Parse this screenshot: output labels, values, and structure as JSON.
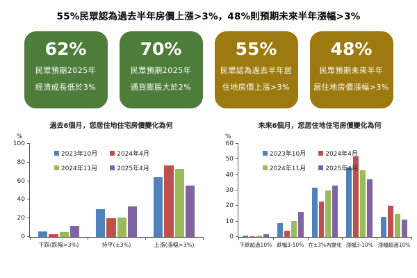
{
  "header": {
    "title": "55%民眾認為過去半年房價上漲>3%，48%則預期未來半年漲幅>3%"
  },
  "colors": {
    "green_box": "#4e7d3b",
    "gold_box": "#9c7a10",
    "series_blue": "#4f81bd",
    "series_red": "#c0504d",
    "series_green": "#9bbb59",
    "series_purple": "#8064a2"
  },
  "stat_boxes": [
    {
      "value": "62%",
      "line1": "民眾預期2025年",
      "line2": "經濟成長低於3%",
      "color": "#4e7d3b"
    },
    {
      "value": "70%",
      "line1": "民眾預期2025年",
      "line2": "通貨膨脹大於2%",
      "color": "#4e7d3b"
    },
    {
      "value": "55%",
      "line1": "民眾認為過去半年居",
      "line2": "住地房價上漲>3%",
      "color": "#9c7a10"
    },
    {
      "value": "48%",
      "line1": "民眾預期未來半年",
      "line2": "居住地房價漲幅>3%",
      "color": "#9c7a10"
    }
  ],
  "chart_data": [
    {
      "type": "bar",
      "title": "過去6個月，您居住地住宅房價變化為何",
      "ylabel": "%",
      "ylim": [
        0,
        100
      ],
      "ytick_step": 20,
      "grid": false,
      "legend_position": "top-left-inside",
      "categories": [
        "下跌(跌幅>3%)",
        "持平(±3%)",
        "上漲(漲幅>3%)"
      ],
      "series": [
        {
          "name": "2023年10月",
          "color": "#4f81bd",
          "values": [
            6,
            30,
            64
          ]
        },
        {
          "name": "2024年4月",
          "color": "#c0504d",
          "values": [
            3,
            20,
            77
          ]
        },
        {
          "name": "2024年11月",
          "color": "#9bbb59",
          "values": [
            5,
            21,
            73
          ]
        },
        {
          "name": "2025年4月",
          "color": "#8064a2",
          "values": [
            12,
            33,
            55
          ]
        }
      ]
    },
    {
      "type": "bar",
      "title": "未來6個月，您居住地住宅房價變化為何",
      "ylabel": "%",
      "ylim": [
        0,
        60
      ],
      "ytick_step": 10,
      "grid": false,
      "legend_position": "top-left-inside",
      "categories": [
        "下跌超過10%",
        "跌幅3-10%",
        "在±3%內變化",
        "漲幅3-10%",
        "漲幅超過10%"
      ],
      "series": [
        {
          "name": "2023年10月",
          "color": "#4f81bd",
          "values": [
            1,
            9,
            32,
            45,
            13
          ]
        },
        {
          "name": "2024年4月",
          "color": "#c0504d",
          "values": [
            0.5,
            4,
            23,
            52,
            20
          ]
        },
        {
          "name": "2024年11月",
          "color": "#9bbb59",
          "values": [
            1,
            10.5,
            30,
            43,
            15
          ]
        },
        {
          "name": "2025年4月",
          "color": "#8064a2",
          "values": [
            2,
            16,
            33,
            37,
            11
          ]
        }
      ]
    }
  ]
}
